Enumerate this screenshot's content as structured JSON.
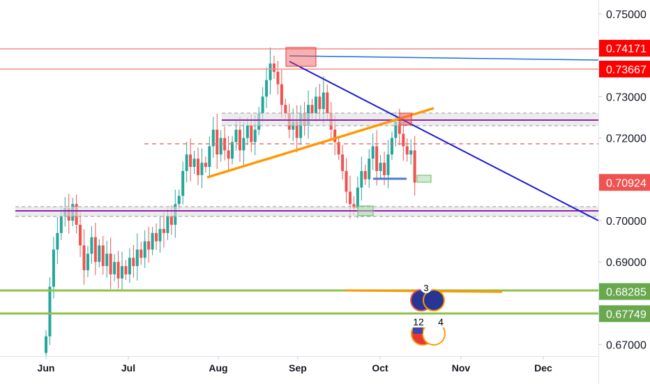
{
  "chart_data": {
    "type": "candlestick",
    "symbol_pair_icons": [
      "au-flag-icon",
      "us-flag-icon"
    ],
    "y_ticks": [
      0.75,
      0.73,
      0.72,
      0.7,
      0.69,
      0.67
    ],
    "y_tick_labels": [
      "0.75000",
      "0.73000",
      "0.72000",
      "0.70000",
      "0.69000",
      "0.67000"
    ],
    "ylim": [
      0.6655,
      0.7583
    ],
    "x_ticks": [
      "Jun",
      "Jul",
      "Aug",
      "Sep",
      "Oct",
      "Nov",
      "Dec"
    ],
    "closes": [
      0.672,
      0.684,
      0.693,
      0.697,
      0.701,
      0.703,
      0.7,
      0.704,
      0.699,
      0.694,
      0.688,
      0.692,
      0.696,
      0.69,
      0.694,
      0.689,
      0.692,
      0.687,
      0.69,
      0.686,
      0.689,
      0.687,
      0.691,
      0.689,
      0.693,
      0.691,
      0.695,
      0.693,
      0.697,
      0.695,
      0.698,
      0.697,
      0.701,
      0.699,
      0.704,
      0.706,
      0.712,
      0.716,
      0.713,
      0.715,
      0.711,
      0.714,
      0.713,
      0.718,
      0.722,
      0.716,
      0.72,
      0.717,
      0.715,
      0.719,
      0.722,
      0.717,
      0.72,
      0.723,
      0.719,
      0.722,
      0.726,
      0.73,
      0.734,
      0.738,
      0.736,
      0.733,
      0.728,
      0.726,
      0.722,
      0.724,
      0.72,
      0.726,
      0.723,
      0.728,
      0.726,
      0.73,
      0.727,
      0.731,
      0.726,
      0.722,
      0.719,
      0.716,
      0.712,
      0.707,
      0.704,
      0.703,
      0.708,
      0.712,
      0.71,
      0.715,
      0.718,
      0.712,
      0.714,
      0.711,
      0.716,
      0.72,
      0.724,
      0.721,
      0.718,
      0.716,
      0.717,
      0.7092
    ],
    "price_labels": [
      {
        "value": "0.74171",
        "color": "#ff0000"
      },
      {
        "value": "0.73667",
        "color": "#ff0000"
      },
      {
        "value": "0.70924",
        "color": "#ef5350"
      },
      {
        "value": "0.68285",
        "color": "#6aa84f"
      },
      {
        "value": "0.67749",
        "color": "#6aa84f"
      }
    ],
    "event_badges": [
      "3",
      "12",
      "4"
    ],
    "colors": {
      "up": "#26a69a",
      "down": "#ef5350",
      "grid": "#f0f3fa"
    }
  }
}
